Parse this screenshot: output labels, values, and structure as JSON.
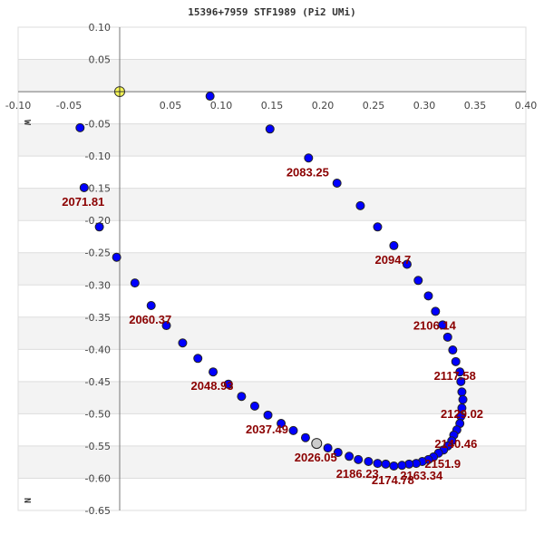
{
  "chart_data": {
    "type": "scatter",
    "title": "15396+7959 STF1989 (Pi2 UMi)",
    "xlim": [
      -0.1,
      0.4
    ],
    "ylim": [
      -0.65,
      0.1
    ],
    "x_ticks": [
      "-0.10",
      "-0.05",
      "0.05",
      "0.10",
      "0.15",
      "0.20",
      "0.25",
      "0.30",
      "0.35",
      "0.40"
    ],
    "x_tick_values": [
      -0.1,
      -0.05,
      0.05,
      0.1,
      0.15,
      0.2,
      0.25,
      0.3,
      0.35,
      0.4
    ],
    "y_ticks": [
      "0.10",
      "0.05",
      "-0.05",
      "-0.10",
      "-0.15",
      "-0.20",
      "-0.25",
      "-0.30",
      "-0.35",
      "-0.40",
      "-0.45",
      "-0.50",
      "-0.55",
      "-0.60",
      "-0.65"
    ],
    "y_tick_values": [
      0.1,
      0.05,
      -0.05,
      -0.1,
      -0.15,
      -0.2,
      -0.25,
      -0.3,
      -0.35,
      -0.4,
      -0.45,
      -0.5,
      -0.55,
      -0.6,
      -0.65
    ],
    "grid": true,
    "banded_background": true,
    "direction_labels": {
      "west": "W",
      "north": "N"
    },
    "colors": {
      "point": "#0000ff",
      "point_edge": "#222222",
      "primary": "#ffff55",
      "current": "#cccccc",
      "label": "#8b0000",
      "band": "#f3f3f3"
    },
    "primary": {
      "x": 0,
      "y": 0
    },
    "current": {
      "x": 0.194,
      "y": -0.546,
      "label": "2026.05"
    },
    "points": [
      {
        "x": 0.089,
        "y": -0.007
      },
      {
        "x": 0.148,
        "y": -0.058
      },
      {
        "x": 0.186,
        "y": -0.103,
        "label": "2083.25"
      },
      {
        "x": 0.214,
        "y": -0.142
      },
      {
        "x": 0.237,
        "y": -0.177
      },
      {
        "x": 0.254,
        "y": -0.21
      },
      {
        "x": 0.27,
        "y": -0.239,
        "label": "2094.7"
      },
      {
        "x": 0.283,
        "y": -0.268
      },
      {
        "x": 0.294,
        "y": -0.293
      },
      {
        "x": 0.304,
        "y": -0.317
      },
      {
        "x": 0.311,
        "y": -0.341,
        "label": "2106.14"
      },
      {
        "x": 0.318,
        "y": -0.362
      },
      {
        "x": 0.323,
        "y": -0.381
      },
      {
        "x": 0.328,
        "y": -0.401
      },
      {
        "x": 0.331,
        "y": -0.419,
        "label": "2117.58"
      },
      {
        "x": 0.335,
        "y": -0.435
      },
      {
        "x": 0.336,
        "y": -0.45
      },
      {
        "x": 0.337,
        "y": -0.466
      },
      {
        "x": 0.338,
        "y": -0.478,
        "label": "2129.02"
      },
      {
        "x": 0.337,
        "y": -0.491
      },
      {
        "x": 0.336,
        "y": -0.504
      },
      {
        "x": 0.335,
        "y": -0.515
      },
      {
        "x": 0.332,
        "y": -0.525,
        "label": "2140.46"
      },
      {
        "x": 0.329,
        "y": -0.533
      },
      {
        "x": 0.327,
        "y": -0.542
      },
      {
        "x": 0.323,
        "y": -0.55
      },
      {
        "x": 0.319,
        "y": -0.556,
        "label": "2151.9"
      },
      {
        "x": 0.314,
        "y": -0.561
      },
      {
        "x": 0.309,
        "y": -0.567
      },
      {
        "x": 0.304,
        "y": -0.571
      },
      {
        "x": 0.298,
        "y": -0.574,
        "label": "2163.34"
      },
      {
        "x": 0.292,
        "y": -0.577
      },
      {
        "x": 0.285,
        "y": -0.578
      },
      {
        "x": 0.278,
        "y": -0.58
      },
      {
        "x": 0.27,
        "y": -0.581,
        "label": "2174.78"
      },
      {
        "x": 0.262,
        "y": -0.578
      },
      {
        "x": 0.254,
        "y": -0.577
      },
      {
        "x": 0.245,
        "y": -0.574
      },
      {
        "x": 0.235,
        "y": -0.571,
        "label": "2186.23"
      },
      {
        "x": 0.226,
        "y": -0.566
      },
      {
        "x": 0.215,
        "y": -0.56
      },
      {
        "x": 0.205,
        "y": -0.553
      },
      {
        "x": 0.183,
        "y": -0.537
      },
      {
        "x": 0.171,
        "y": -0.526
      },
      {
        "x": 0.146,
        "y": -0.502,
        "label": "2037.49"
      },
      {
        "x": 0.159,
        "y": -0.515
      },
      {
        "x": 0.133,
        "y": -0.488
      },
      {
        "x": 0.12,
        "y": -0.473
      },
      {
        "x": 0.107,
        "y": -0.454
      },
      {
        "x": 0.092,
        "y": -0.435,
        "label": "2048.93"
      },
      {
        "x": 0.077,
        "y": -0.414
      },
      {
        "x": 0.062,
        "y": -0.39
      },
      {
        "x": 0.046,
        "y": -0.363
      },
      {
        "x": 0.031,
        "y": -0.332,
        "label": "2060.37"
      },
      {
        "x": 0.015,
        "y": -0.297
      },
      {
        "x": -0.003,
        "y": -0.257
      },
      {
        "x": -0.02,
        "y": -0.21
      },
      {
        "x": -0.035,
        "y": -0.149,
        "label": "2071.81"
      },
      {
        "x": -0.039,
        "y": -0.056
      }
    ]
  }
}
